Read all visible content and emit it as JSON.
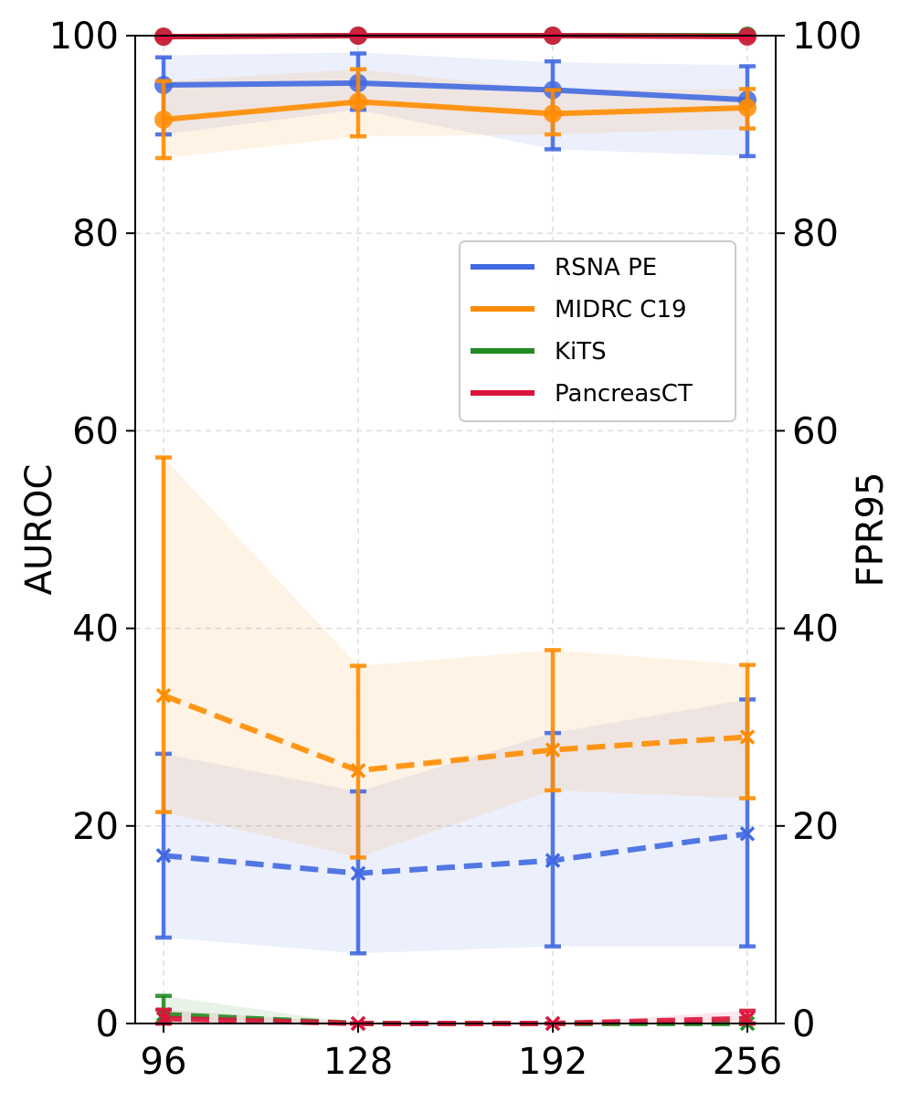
{
  "chart_data": {
    "type": "line",
    "x": [
      96,
      128,
      192,
      256
    ],
    "x_tick_labels": [
      "96",
      "128",
      "192",
      "256"
    ],
    "ylabel": "AUROC",
    "y2label": "FPR95",
    "ylim": [
      0,
      100
    ],
    "y2lim": [
      0,
      100
    ],
    "y_ticks": [
      0,
      20,
      40,
      60,
      80,
      100
    ],
    "y2_ticks": [
      0,
      20,
      40,
      60,
      80,
      100
    ],
    "grid": true,
    "legend_placement": "right",
    "series": [
      {
        "name": "RSNA PE",
        "color": "#4169e1",
        "auroc": [
          95.0,
          95.2,
          94.5,
          93.5
        ],
        "auroc_err": [
          [
            90.0,
            97.8
          ],
          [
            92.5,
            98.2
          ],
          [
            88.5,
            97.4
          ],
          [
            87.8,
            96.9
          ]
        ],
        "auroc_band": [
          [
            90.0,
            98.0
          ],
          [
            92.5,
            98.3
          ],
          [
            88.5,
            97.3
          ],
          [
            87.8,
            97.0
          ]
        ],
        "fpr95": [
          17.0,
          15.2,
          16.5,
          19.2
        ],
        "fpr95_err": [
          [
            8.7,
            27.3
          ],
          [
            7.1,
            23.5
          ],
          [
            7.8,
            29.4
          ],
          [
            7.8,
            32.8
          ]
        ],
        "fpr95_band": [
          [
            8.7,
            27.3
          ],
          [
            7.1,
            23.5
          ],
          [
            7.8,
            29.4
          ],
          [
            7.8,
            32.8
          ]
        ]
      },
      {
        "name": "MIDRC C19",
        "color": "#ff8c00",
        "auroc": [
          91.5,
          93.3,
          92.1,
          92.7
        ],
        "auroc_err": [
          [
            87.6,
            95.4
          ],
          [
            89.8,
            96.6
          ],
          [
            90.0,
            94.5
          ],
          [
            90.6,
            94.6
          ]
        ],
        "auroc_band": [
          [
            87.6,
            95.4
          ],
          [
            89.8,
            96.6
          ],
          [
            90.0,
            94.5
          ],
          [
            90.6,
            94.6
          ]
        ],
        "fpr95": [
          33.2,
          25.6,
          27.7,
          29.0
        ],
        "fpr95_err": [
          [
            21.4,
            57.3
          ],
          [
            16.8,
            36.2
          ],
          [
            23.6,
            37.8
          ],
          [
            22.8,
            36.3
          ]
        ],
        "fpr95_band": [
          [
            21.4,
            57.3
          ],
          [
            16.8,
            36.2
          ],
          [
            23.6,
            37.8
          ],
          [
            22.8,
            36.3
          ]
        ]
      },
      {
        "name": "KiTS",
        "color": "#228b22",
        "auroc": [
          99.9,
          100.0,
          100.0,
          100.0
        ],
        "auroc_err": [
          [
            99.7,
            100.0
          ],
          [
            100.0,
            100.0
          ],
          [
            100.0,
            100.0
          ],
          [
            100.0,
            100.0
          ]
        ],
        "auroc_band": [
          [
            99.7,
            100.0
          ],
          [
            100.0,
            100.0
          ],
          [
            100.0,
            100.0
          ],
          [
            100.0,
            100.0
          ]
        ],
        "fpr95": [
          0.9,
          0.0,
          0.0,
          0.0
        ],
        "fpr95_err": [
          [
            0.0,
            2.8
          ],
          [
            0.0,
            0.0
          ],
          [
            0.0,
            0.0
          ],
          [
            0.0,
            0.0
          ]
        ],
        "fpr95_band": [
          [
            0.0,
            2.8
          ],
          [
            0.0,
            0.0
          ],
          [
            0.0,
            0.0
          ],
          [
            0.0,
            0.0
          ]
        ]
      },
      {
        "name": "PancreasCT",
        "color": "#dc143c",
        "auroc": [
          99.9,
          100.0,
          100.0,
          99.9
        ],
        "auroc_err": [
          [
            99.7,
            100.0
          ],
          [
            100.0,
            100.0
          ],
          [
            100.0,
            100.0
          ],
          [
            99.7,
            100.0
          ]
        ],
        "auroc_band": [
          [
            99.7,
            100.0
          ],
          [
            100.0,
            100.0
          ],
          [
            100.0,
            100.0
          ],
          [
            99.7,
            100.0
          ]
        ],
        "fpr95": [
          0.5,
          0.0,
          0.0,
          0.5
        ],
        "fpr95_err": [
          [
            0.0,
            1.4
          ],
          [
            0.0,
            0.0
          ],
          [
            0.0,
            0.0
          ],
          [
            0.0,
            1.3
          ]
        ],
        "fpr95_band": [
          [
            0.0,
            1.4
          ],
          [
            0.0,
            0.0
          ],
          [
            0.0,
            0.0
          ],
          [
            0.0,
            1.3
          ]
        ]
      }
    ]
  }
}
